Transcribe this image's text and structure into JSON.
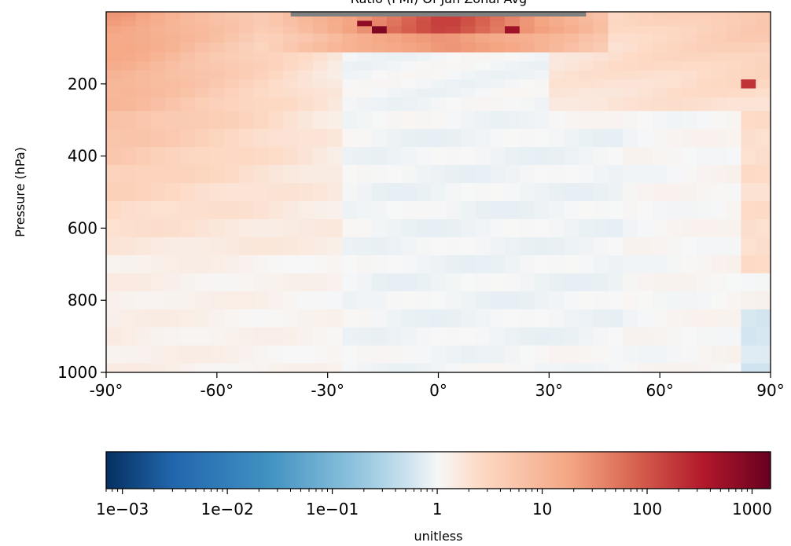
{
  "chart_data": {
    "type": "heatmap",
    "title": "Ratio (FMI) Of Jan Zonal Avg",
    "xlabel": "",
    "ylabel": "Pressure (hPa)",
    "xlim": [
      -90,
      90
    ],
    "ylim": [
      1000,
      0
    ],
    "x_ticks": [
      -90,
      -60,
      -30,
      0,
      30,
      60,
      90
    ],
    "x_tick_labels": [
      "-90°",
      "-60°",
      "-30°",
      "0°",
      "30°",
      "60°",
      "90°"
    ],
    "y_ticks": [
      200,
      400,
      600,
      800,
      1000
    ],
    "y_tick_labels": [
      "200",
      "400",
      "600",
      "800",
      "1000"
    ],
    "colorbar": {
      "colormap": "RdBu_r",
      "scale": "log",
      "range": [
        0.0007,
        1500
      ],
      "ticks": [
        0.001,
        0.01,
        0.1,
        1,
        10,
        100,
        1000
      ],
      "tick_labels": [
        "1e−03",
        "1e−02",
        "1e−01",
        "1",
        "10",
        "100",
        "1000"
      ],
      "label": "unitless"
    },
    "lat_centers": [
      -88,
      -84,
      -80,
      -76,
      -72,
      -68,
      -64,
      -60,
      -56,
      -52,
      -48,
      -44,
      -40,
      -36,
      -32,
      -28,
      -24,
      -20,
      -16,
      -12,
      -8,
      -4,
      0,
      4,
      8,
      12,
      16,
      20,
      24,
      28,
      32,
      36,
      40,
      44,
      48,
      52,
      56,
      60,
      64,
      68,
      72,
      76,
      80,
      84,
      88
    ],
    "pressure_levels": [
      10,
      20,
      30,
      50,
      70,
      100,
      125,
      150,
      175,
      200,
      225,
      250,
      300,
      350,
      400,
      450,
      500,
      550,
      600,
      650,
      700,
      750,
      800,
      850,
      900,
      950,
      1000
    ],
    "missing_color": "#808080",
    "highlight_cells": [
      {
        "lat": 84,
        "p": 200,
        "value": 200
      },
      {
        "lat": -20,
        "p": 30,
        "value": 700
      },
      {
        "lat": -16,
        "p": 50,
        "value": 900
      },
      {
        "lat": 20,
        "p": 50,
        "value": 500
      }
    ]
  }
}
